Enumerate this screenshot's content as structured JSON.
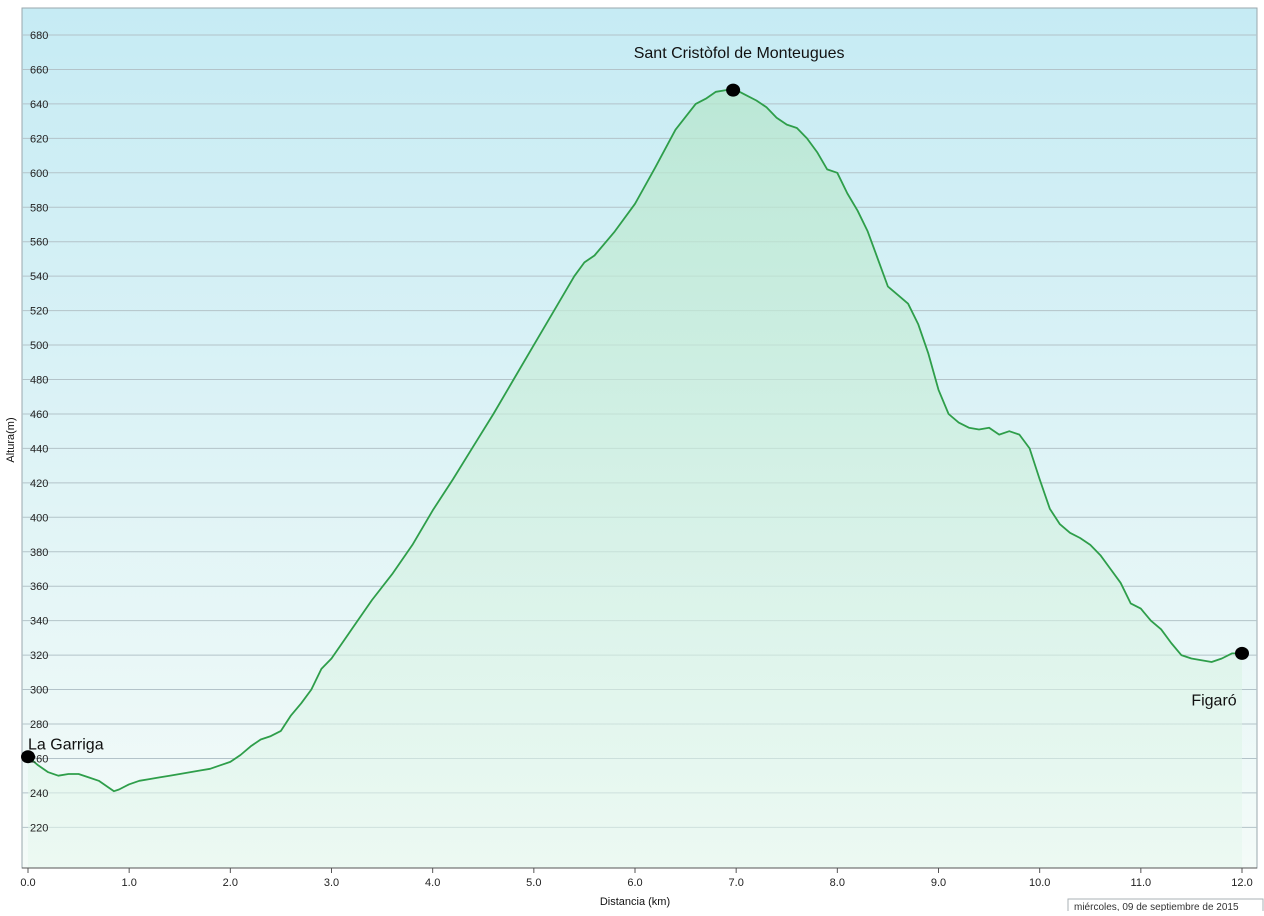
{
  "chart_data": {
    "type": "area",
    "xlabel": "Distancia  (km)",
    "ylabel": "Altura(m)",
    "xlim": [
      0,
      12
    ],
    "ylim": [
      200,
      690
    ],
    "x_ticks": [
      "0.0",
      "1.0",
      "2.0",
      "3.0",
      "4.0",
      "5.0",
      "6.0",
      "7.0",
      "8.0",
      "9.0",
      "10.0",
      "11.0",
      "12.0"
    ],
    "y_ticks": [
      "220",
      "240",
      "260",
      "280",
      "300",
      "320",
      "340",
      "360",
      "380",
      "400",
      "420",
      "440",
      "460",
      "480",
      "500",
      "520",
      "540",
      "560",
      "580",
      "600",
      "620",
      "640",
      "660",
      "680"
    ],
    "grid": "horizontal",
    "line_color": "#2e9e4a",
    "background_gradient": [
      "#c6ebf4",
      "#f4fbf8"
    ],
    "series": [
      {
        "x": [
          0.0,
          0.1,
          0.2,
          0.3,
          0.4,
          0.5,
          0.6,
          0.7,
          0.8,
          0.85,
          0.9,
          1.0,
          1.1,
          1.2,
          1.3,
          1.4,
          1.5,
          1.6,
          1.7,
          1.8,
          1.9,
          2.0,
          2.1,
          2.2,
          2.3,
          2.4,
          2.5,
          2.6,
          2.7,
          2.8,
          2.9,
          3.0,
          3.2,
          3.4,
          3.6,
          3.8,
          4.0,
          4.2,
          4.4,
          4.6,
          4.8,
          5.0,
          5.2,
          5.4,
          5.5,
          5.6,
          5.8,
          6.0,
          6.2,
          6.4,
          6.6,
          6.7,
          6.8,
          6.9,
          7.0,
          7.1,
          7.2,
          7.3,
          7.4,
          7.5,
          7.6,
          7.7,
          7.8,
          7.9,
          8.0,
          8.1,
          8.2,
          8.3,
          8.4,
          8.5,
          8.6,
          8.7,
          8.8,
          8.9,
          9.0,
          9.1,
          9.2,
          9.3,
          9.4,
          9.5,
          9.6,
          9.7,
          9.8,
          9.9,
          10.0,
          10.1,
          10.2,
          10.3,
          10.4,
          10.5,
          10.6,
          10.7,
          10.8,
          10.9,
          11.0,
          11.1,
          11.2,
          11.3,
          11.4,
          11.5,
          11.6,
          11.7,
          11.8,
          11.9,
          12.0
        ],
        "y": [
          261,
          256,
          252,
          250,
          251,
          251,
          249,
          247,
          243,
          241,
          242,
          245,
          247,
          248,
          249,
          250,
          251,
          252,
          253,
          254,
          256,
          258,
          262,
          267,
          271,
          273,
          276,
          285,
          292,
          300,
          312,
          318,
          335,
          352,
          367,
          384,
          404,
          422,
          441,
          460,
          480,
          500,
          520,
          540,
          548,
          552,
          566,
          582,
          603,
          625,
          640,
          643,
          647,
          648,
          648,
          645,
          642,
          638,
          632,
          628,
          626,
          620,
          612,
          602,
          600,
          588,
          578,
          566,
          550,
          534,
          529,
          524,
          512,
          495,
          474,
          460,
          455,
          452,
          451,
          452,
          448,
          450,
          448,
          440,
          422,
          405,
          396,
          391,
          388,
          384,
          378,
          370,
          362,
          350,
          347,
          340,
          335,
          327,
          320,
          318,
          317,
          316,
          318,
          321,
          321
        ]
      }
    ],
    "markers": [
      {
        "x": 0.0,
        "y": 261,
        "label": "La Garriga"
      },
      {
        "x": 6.97,
        "y": 648,
        "label": "Sant Cristòfol de Monteugues"
      },
      {
        "x": 12.0,
        "y": 321,
        "label": "Figaró"
      }
    ]
  },
  "footer": {
    "date_stamp": "miércoles, 09 de septiembre de 2015"
  }
}
